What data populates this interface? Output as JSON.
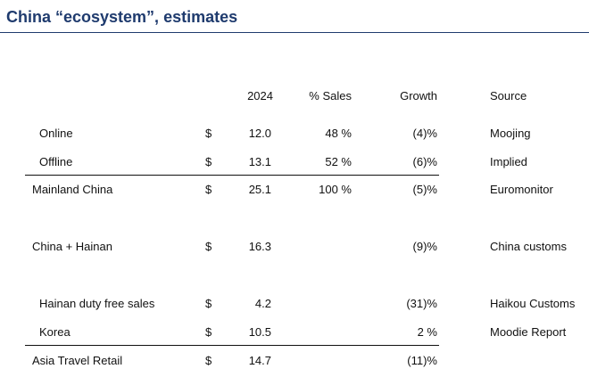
{
  "title": "China “ecosystem”, estimates",
  "header": {
    "year": "2024",
    "sales": "% Sales",
    "growth": "Growth",
    "source": "Source"
  },
  "rows": [
    {
      "label": "Online",
      "currency": "$",
      "value": "12.0",
      "sales": "48 %",
      "growth": "(4)%",
      "source": "Moojing"
    },
    {
      "label": "Offline",
      "currency": "$",
      "value": "13.1",
      "sales": "52 %",
      "growth": "(6)%",
      "source": "Implied"
    },
    {
      "label": "Mainland China",
      "currency": "$",
      "value": "25.1",
      "sales": "100 %",
      "growth": "(5)%",
      "source": "Euromonitor"
    },
    {
      "label": "China + Hainan",
      "currency": "$",
      "value": "16.3",
      "sales": "",
      "growth": "(9)%",
      "source": "China customs"
    },
    {
      "label": "Hainan duty free sales",
      "currency": "$",
      "value": "4.2",
      "sales": "",
      "growth": "(31)%",
      "source": "Haikou Customs"
    },
    {
      "label": "Korea",
      "currency": "$",
      "value": "10.5",
      "sales": "",
      "growth": "2 %",
      "source": "Moodie Report"
    },
    {
      "label": "Asia Travel Retail",
      "currency": "$",
      "value": "14.7",
      "sales": "",
      "growth": "(11)%",
      "source": ""
    }
  ]
}
